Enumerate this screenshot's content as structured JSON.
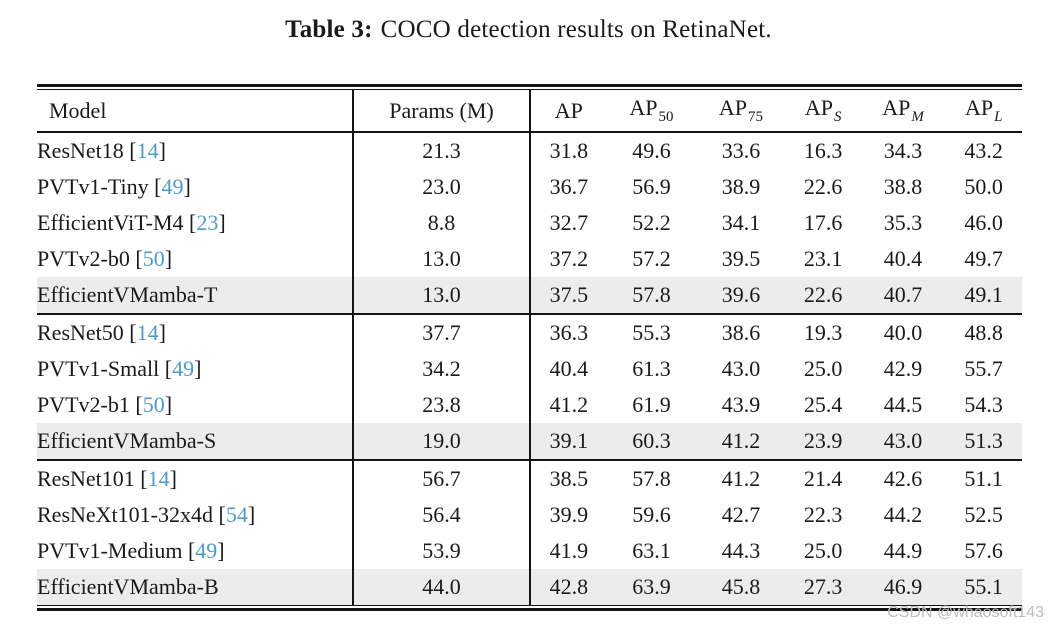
{
  "title": {
    "prefix": "Table 3:",
    "text": "COCO detection results on RetinaNet."
  },
  "table": {
    "columns": {
      "model": "Model",
      "params": "Params (M)",
      "metrics": [
        {
          "base": "AP",
          "sub": "",
          "italic": false
        },
        {
          "base": "AP",
          "sub": "50",
          "italic": false
        },
        {
          "base": "AP",
          "sub": "75",
          "italic": false
        },
        {
          "base": "AP",
          "sub": "S",
          "italic": true
        },
        {
          "base": "AP",
          "sub": "M",
          "italic": true
        },
        {
          "base": "AP",
          "sub": "L",
          "italic": true
        }
      ]
    },
    "groups": [
      {
        "rows": [
          {
            "model": "ResNet18",
            "ref": "14",
            "params": "21.3",
            "values": [
              "31.8",
              "49.6",
              "33.6",
              "16.3",
              "34.3",
              "43.2"
            ],
            "highlight": false
          },
          {
            "model": "PVTv1-Tiny",
            "ref": "49",
            "params": "23.0",
            "values": [
              "36.7",
              "56.9",
              "38.9",
              "22.6",
              "38.8",
              "50.0"
            ],
            "highlight": false
          },
          {
            "model": "EfficientViT-M4",
            "ref": "23",
            "params": "8.8",
            "values": [
              "32.7",
              "52.2",
              "34.1",
              "17.6",
              "35.3",
              "46.0"
            ],
            "highlight": false
          },
          {
            "model": "PVTv2-b0",
            "ref": "50",
            "params": "13.0",
            "values": [
              "37.2",
              "57.2",
              "39.5",
              "23.1",
              "40.4",
              "49.7"
            ],
            "highlight": false
          },
          {
            "model": "EfficientVMamba-T",
            "ref": null,
            "params": "13.0",
            "values": [
              "37.5",
              "57.8",
              "39.6",
              "22.6",
              "40.7",
              "49.1"
            ],
            "highlight": true
          }
        ]
      },
      {
        "rows": [
          {
            "model": "ResNet50",
            "ref": "14",
            "params": "37.7",
            "values": [
              "36.3",
              "55.3",
              "38.6",
              "19.3",
              "40.0",
              "48.8"
            ],
            "highlight": false
          },
          {
            "model": "PVTv1-Small",
            "ref": "49",
            "params": "34.2",
            "values": [
              "40.4",
              "61.3",
              "43.0",
              "25.0",
              "42.9",
              "55.7"
            ],
            "highlight": false
          },
          {
            "model": "PVTv2-b1",
            "ref": "50",
            "params": "23.8",
            "values": [
              "41.2",
              "61.9",
              "43.9",
              "25.4",
              "44.5",
              "54.3"
            ],
            "highlight": false
          },
          {
            "model": "EfficientVMamba-S",
            "ref": null,
            "params": "19.0",
            "values": [
              "39.1",
              "60.3",
              "41.2",
              "23.9",
              "43.0",
              "51.3"
            ],
            "highlight": true
          }
        ]
      },
      {
        "rows": [
          {
            "model": "ResNet101",
            "ref": "14",
            "params": "56.7",
            "values": [
              "38.5",
              "57.8",
              "41.2",
              "21.4",
              "42.6",
              "51.1"
            ],
            "highlight": false
          },
          {
            "model": "ResNeXt101-32x4d",
            "ref": "54",
            "params": "56.4",
            "values": [
              "39.9",
              "59.6",
              "42.7",
              "22.3",
              "44.2",
              "52.5"
            ],
            "highlight": false
          },
          {
            "model": "PVTv1-Medium",
            "ref": "49",
            "params": "53.9",
            "values": [
              "41.9",
              "63.1",
              "44.3",
              "25.0",
              "44.9",
              "57.6"
            ],
            "highlight": false
          },
          {
            "model": "EfficientVMamba-B",
            "ref": null,
            "params": "44.0",
            "values": [
              "42.8",
              "63.9",
              "45.8",
              "27.3",
              "46.9",
              "55.1"
            ],
            "highlight": true
          }
        ]
      }
    ]
  },
  "watermark": "CSDN @whaosoft143",
  "colors": {
    "citation_blue": "#4d9bc9",
    "highlight_gray": "#ececec",
    "rule_black": "#141414",
    "background": "#ffffff"
  }
}
